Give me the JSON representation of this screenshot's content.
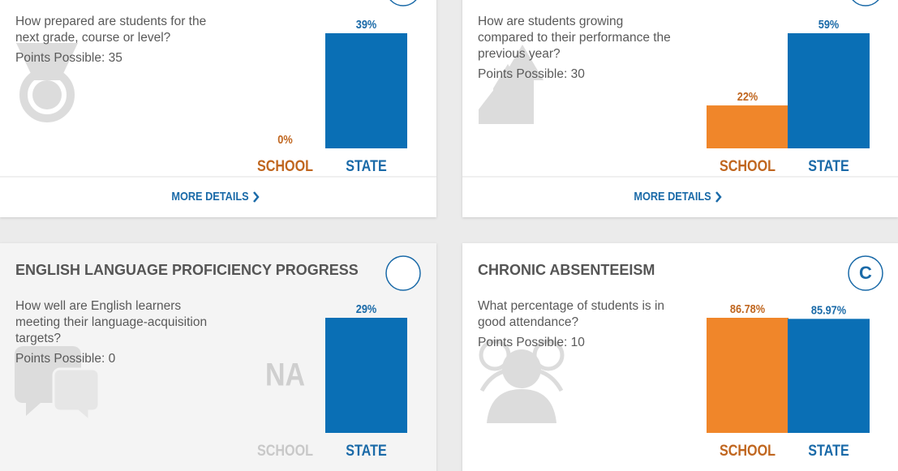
{
  "chart_data": [
    {
      "type": "bar",
      "question": [
        "How prepared are students for the",
        "next grade, course or level?"
      ],
      "points": "Points Possible: 35",
      "categories": [
        "SCHOOL",
        "STATE"
      ],
      "values": [
        0,
        39
      ],
      "value_labels": [
        "0%",
        "39%"
      ],
      "colors": [
        "#f0862a",
        "#0a6fb5"
      ],
      "link": "MORE DETAILS"
    },
    {
      "type": "bar",
      "question": [
        "How are students growing",
        "compared to their performance the",
        "previous year?"
      ],
      "points": "Points Possible: 30",
      "categories": [
        "SCHOOL",
        "STATE"
      ],
      "values": [
        22,
        59
      ],
      "value_labels": [
        "22%",
        "59%"
      ],
      "colors": [
        "#f0862a",
        "#0a6fb5"
      ],
      "link": "MORE DETAILS"
    },
    {
      "type": "bar",
      "title": "ENGLISH LANGUAGE PROFICIENCY PROGRESS",
      "question": [
        "How well are English learners",
        "meeting their language-acquisition",
        "targets?"
      ],
      "points": "Points Possible: 0",
      "categories": [
        "SCHOOL",
        "STATE"
      ],
      "values": [
        null,
        29
      ],
      "value_labels": [
        "NA",
        "29%"
      ],
      "colors": [
        "#f0862a",
        "#0a6fb5"
      ]
    },
    {
      "type": "bar",
      "title": "CHRONIC ABSENTEEISM",
      "grade": "C",
      "question": [
        "What percentage of students is in",
        "good attendance?"
      ],
      "points": "Points Possible: 10",
      "categories": [
        "SCHOOL",
        "STATE"
      ],
      "values": [
        86.78,
        85.97
      ],
      "value_labels": [
        "86.78%",
        "85.97%"
      ],
      "colors": [
        "#f0862a",
        "#0a6fb5"
      ]
    }
  ]
}
